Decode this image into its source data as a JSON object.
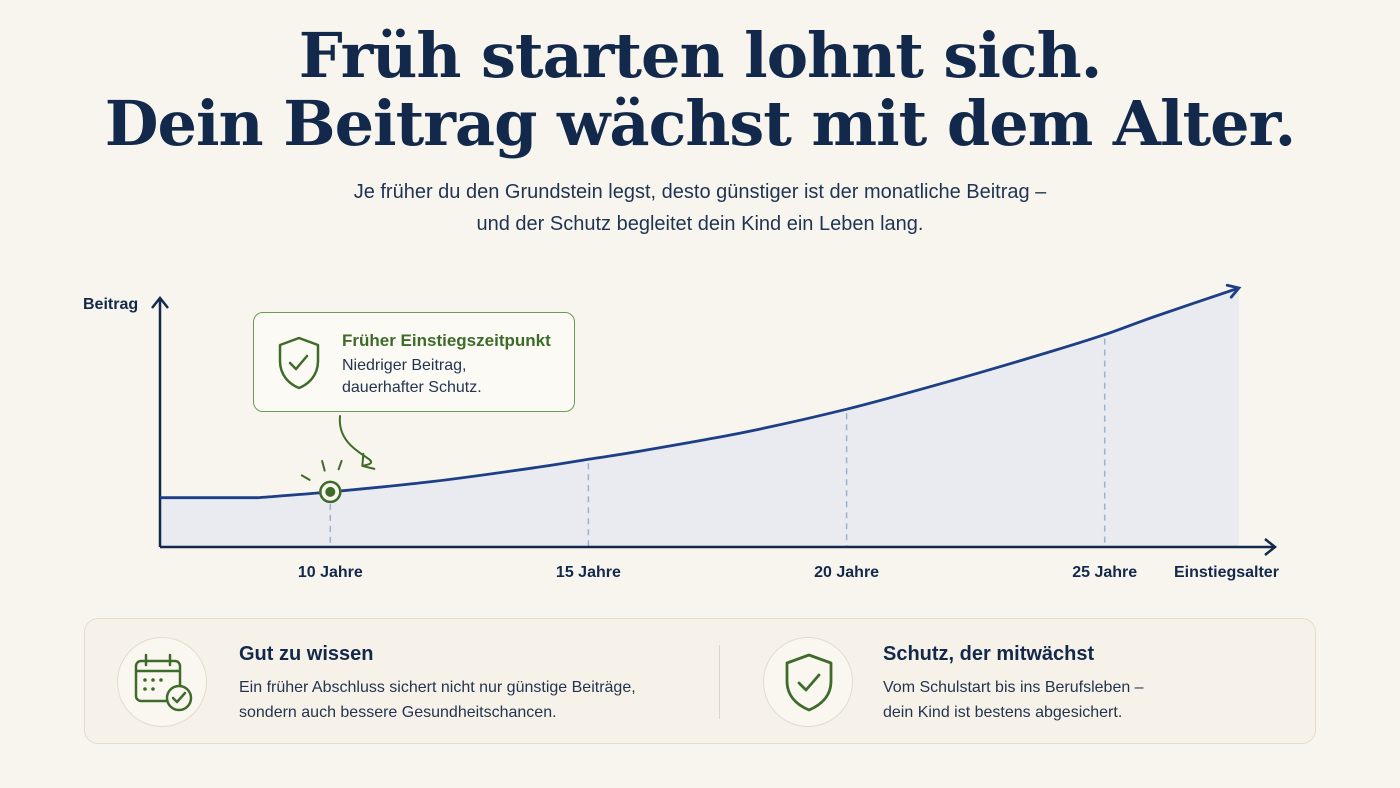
{
  "header": {
    "title_line1": "Früh starten lohnt sich.",
    "title_line2": "Dein Beitrag wächst mit dem Alter.",
    "subtitle_line1": "Je früher du den Grundstein legst, desto günstiger ist der monatliche Beitrag –",
    "subtitle_line2": "und der Schutz begleitet dein Kind ein Leben lang."
  },
  "callout": {
    "title": "Früher Einstiegszeitpunkt",
    "line1": "Niedriger Beitrag,",
    "line2": "dauerhafter Schutz.",
    "icon": "shield-check-icon"
  },
  "chart_data": {
    "type": "area",
    "ylabel": "Beitrag",
    "xlabel": "Einstiegsalter",
    "x_ticks": [
      {
        "value": 10,
        "label": "10 Jahre"
      },
      {
        "value": 15,
        "label": "15 Jahre"
      },
      {
        "value": 20,
        "label": "20 Jahre"
      },
      {
        "value": 25,
        "label": "25 Jahre"
      }
    ],
    "xlim": [
      6.7,
      28.3
    ],
    "ylim": [
      0,
      1
    ],
    "y_values_relative": true,
    "series": [
      {
        "x": [
          8.6,
          10,
          12,
          14,
          15,
          16,
          18,
          20,
          22,
          24,
          25,
          26,
          27.6
        ],
        "y": [
          0.1,
          0.125,
          0.17,
          0.23,
          0.265,
          0.3,
          0.38,
          0.48,
          0.6,
          0.73,
          0.8,
          0.88,
          1.0
        ]
      }
    ],
    "highlight_x": 10,
    "grid": false,
    "colors": {
      "line": "#1d3f86",
      "fill": "#e9ebf1",
      "axis": "#13294b",
      "guide": "#9bb2cc",
      "highlight": "#3f6b2a"
    }
  },
  "info": {
    "left": {
      "title": "Gut zu wissen",
      "line1": "Ein früher Abschluss sichert nicht nur günstige Beiträge,",
      "line2": "sondern auch bessere Gesundheitschancen.",
      "icon": "calendar-check-icon"
    },
    "right": {
      "title": "Schutz, der mitwächst",
      "line1": "Vom Schulstart bis ins Berufsleben –",
      "line2": "dein Kind ist bestens abgesichert.",
      "icon": "shield-check-icon"
    }
  }
}
